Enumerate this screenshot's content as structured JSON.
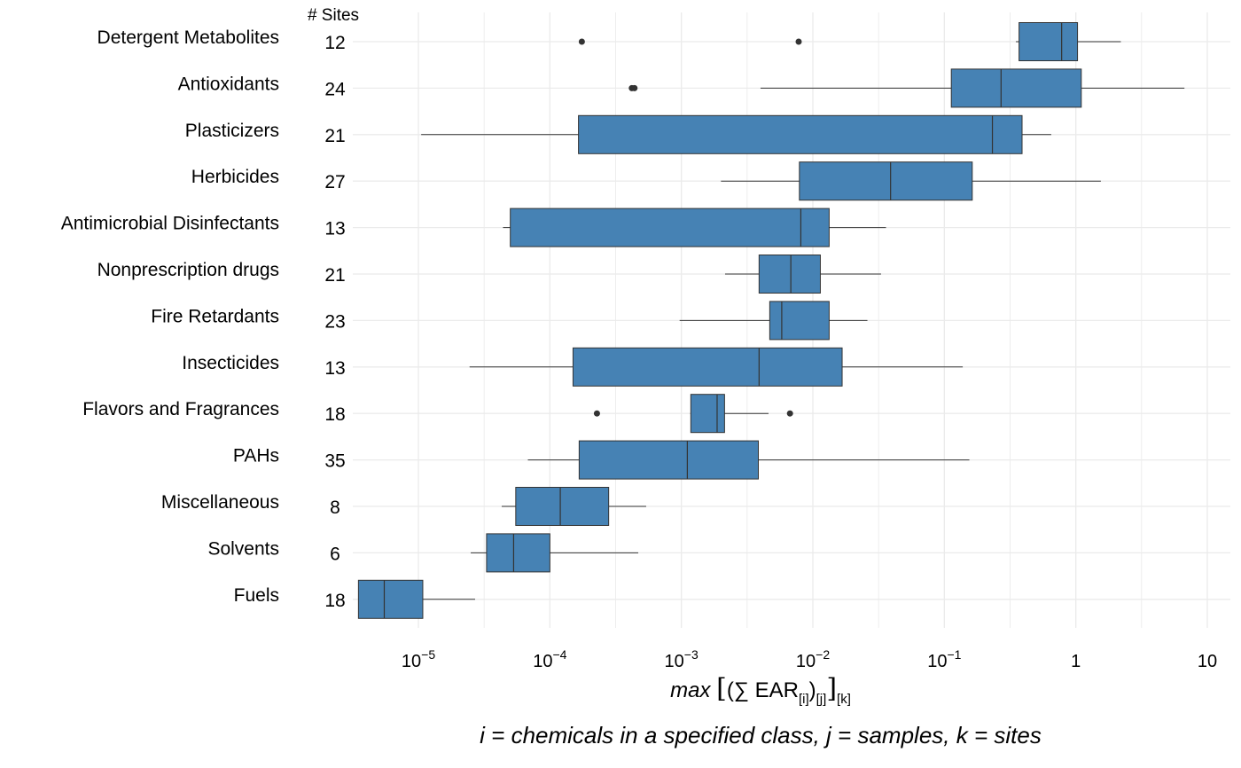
{
  "chart_data": {
    "type": "boxplot",
    "orientation": "horizontal",
    "x_scale": "log10",
    "xlim": [
      2.8e-06,
      13
    ],
    "sites_header": "# Sites",
    "categories": [
      {
        "name": "Detergent Metabolites",
        "sites": "12",
        "whisker_low": 0.35,
        "q1": 0.37,
        "median": 0.78,
        "q3": 1.03,
        "whisker_high": 2.2,
        "outliers": [
          0.000175,
          0.0078
        ]
      },
      {
        "name": "Antioxidants",
        "sites": "24",
        "whisker_low": 0.004,
        "q1": 0.113,
        "median": 0.27,
        "q3": 1.1,
        "whisker_high": 6.7,
        "outliers": [
          0.00042,
          0.00044
        ]
      },
      {
        "name": "Plasticizers",
        "sites": "21",
        "whisker_low": 1.05e-05,
        "q1": 0.000165,
        "median": 0.232,
        "q3": 0.39,
        "whisker_high": 0.65,
        "outliers": []
      },
      {
        "name": "Herbicides",
        "sites": "27",
        "whisker_low": 0.002,
        "q1": 0.0079,
        "median": 0.039,
        "q3": 0.163,
        "whisker_high": 1.55,
        "outliers": []
      },
      {
        "name": "Antimicrobial Disinfectants",
        "sites": "13",
        "whisker_low": 4.4e-05,
        "q1": 5e-05,
        "median": 0.0081,
        "q3": 0.0133,
        "whisker_high": 0.036,
        "outliers": []
      },
      {
        "name": "Nonprescription drugs",
        "sites": "21",
        "whisker_low": 0.00215,
        "q1": 0.0039,
        "median": 0.0068,
        "q3": 0.0114,
        "whisker_high": 0.033,
        "outliers": []
      },
      {
        "name": "Fire Retardants",
        "sites": "23",
        "whisker_low": 0.00097,
        "q1": 0.0047,
        "median": 0.0058,
        "q3": 0.0133,
        "whisker_high": 0.026,
        "outliers": []
      },
      {
        "name": "Insecticides",
        "sites": "13",
        "whisker_low": 2.45e-05,
        "q1": 0.00015,
        "median": 0.0039,
        "q3": 0.0167,
        "whisker_high": 0.138,
        "outliers": []
      },
      {
        "name": "Flavors and Fragrances",
        "sites": "18",
        "whisker_low": 0.00117,
        "q1": 0.00118,
        "median": 0.00187,
        "q3": 0.00213,
        "whisker_high": 0.0046,
        "outliers": [
          0.000228,
          0.0067
        ]
      },
      {
        "name": "PAHs",
        "sites": "35",
        "whisker_low": 6.8e-05,
        "q1": 0.000167,
        "median": 0.00111,
        "q3": 0.00385,
        "whisker_high": 0.155,
        "outliers": []
      },
      {
        "name": "Miscellaneous",
        "sites": "8",
        "whisker_low": 4.3e-05,
        "q1": 5.5e-05,
        "median": 0.00012,
        "q3": 0.00028,
        "whisker_high": 0.00054,
        "outliers": []
      },
      {
        "name": "Solvents",
        "sites": "6",
        "whisker_low": 2.5e-05,
        "q1": 3.3e-05,
        "median": 5.3e-05,
        "q3": 0.0001,
        "whisker_high": 0.00047,
        "outliers": []
      },
      {
        "name": "Fuels",
        "sites": "18",
        "whisker_low": 3.5e-06,
        "q1": 3.5e-06,
        "median": 5.5e-06,
        "q3": 1.08e-05,
        "whisker_high": 2.7e-05,
        "outliers": []
      }
    ],
    "x_ticks": [
      {
        "value": 1e-05,
        "base": "10",
        "exp": "−5"
      },
      {
        "value": 0.0001,
        "base": "10",
        "exp": "−4"
      },
      {
        "value": 0.001,
        "base": "10",
        "exp": "−3"
      },
      {
        "value": 0.01,
        "base": "10",
        "exp": "−2"
      },
      {
        "value": 0.1,
        "base": "10",
        "exp": "−1"
      },
      {
        "value": 1,
        "base": "1",
        "exp": ""
      },
      {
        "value": 10,
        "base": "10",
        "exp": ""
      }
    ],
    "xlabel": {
      "prefix": "max",
      "core": "(∑ EAR",
      "sub_i": "[i]",
      "sub_j": "[j]",
      "sub_k": "[k]"
    },
    "caption": "i = chemicals in a specified class, j = samples, k = sites",
    "box_color": "#4682B4",
    "box_stroke": "#333333",
    "grid_color": "#EBEBEB",
    "grid": true,
    "legend": "none"
  }
}
